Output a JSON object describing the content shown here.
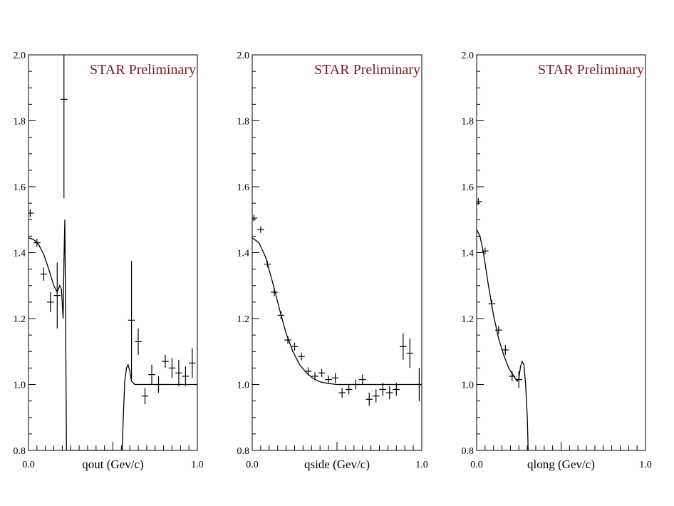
{
  "chart_data": [
    {
      "type": "scatter",
      "watermark": "STAR Preliminary",
      "xlabel": "qout (Gev/c)",
      "x_tick_labels": [
        "0.0",
        "1.0"
      ],
      "y_tick_labels": [
        "0.8",
        "1.0",
        "1.2",
        "1.4",
        "1.6",
        "1.8",
        "2.0"
      ],
      "xlim": [
        0.0,
        1.0
      ],
      "ylim": [
        0.8,
        2.0
      ],
      "series": [
        {
          "points": [
            {
              "x": 0.01,
              "y": 1.52,
              "xerr": 0.02,
              "yerr": 0.012
            },
            {
              "x": 0.05,
              "y": 1.43,
              "xerr": 0.02,
              "yerr": 0.012
            },
            {
              "x": 0.09,
              "y": 1.335,
              "xerr": 0.02,
              "yerr": 0.02
            },
            {
              "x": 0.13,
              "y": 1.25,
              "xerr": 0.02,
              "yerr": 0.03
            },
            {
              "x": 0.17,
              "y": 1.27,
              "xerr": 0.02,
              "yerr": 0.1
            },
            {
              "x": 0.21,
              "y": 1.865,
              "xerr": 0.02,
              "yerr": 0.3
            },
            {
              "x": 0.61,
              "y": 1.195,
              "xerr": 0.02,
              "yerr": 0.18
            },
            {
              "x": 0.65,
              "y": 1.13,
              "xerr": 0.02,
              "yerr": 0.04
            },
            {
              "x": 0.69,
              "y": 0.965,
              "xerr": 0.02,
              "yerr": 0.025
            },
            {
              "x": 0.73,
              "y": 1.03,
              "xerr": 0.02,
              "yerr": 0.03
            },
            {
              "x": 0.77,
              "y": 1.0,
              "xerr": 0.02,
              "yerr": 0.025
            },
            {
              "x": 0.81,
              "y": 1.07,
              "xerr": 0.02,
              "yerr": 0.02
            },
            {
              "x": 0.85,
              "y": 1.05,
              "xerr": 0.02,
              "yerr": 0.03
            },
            {
              "x": 0.89,
              "y": 1.035,
              "xerr": 0.02,
              "yerr": 0.04
            },
            {
              "x": 0.93,
              "y": 1.025,
              "xerr": 0.02,
              "yerr": 0.03
            },
            {
              "x": 0.97,
              "y": 1.065,
              "xerr": 0.02,
              "yerr": 0.045
            }
          ],
          "fit_curve": [
            [
              0.0,
              1.445
            ],
            [
              0.03,
              1.44
            ],
            [
              0.06,
              1.425
            ],
            [
              0.09,
              1.395
            ],
            [
              0.12,
              1.35
            ],
            [
              0.15,
              1.3
            ],
            [
              0.17,
              1.28
            ],
            [
              0.185,
              1.3
            ],
            [
              0.195,
              1.29
            ],
            [
              0.205,
              1.2
            ],
            [
              0.21,
              1.38
            ],
            [
              0.215,
              1.5
            ],
            [
              0.22,
              1.2
            ],
            [
              0.225,
              0.8
            ],
            [
              0.5,
              0.8
            ],
            [
              0.555,
              0.8
            ],
            [
              0.56,
              0.88
            ],
            [
              0.57,
              1.01
            ],
            [
              0.58,
              1.05
            ],
            [
              0.59,
              1.06
            ],
            [
              0.6,
              1.04
            ],
            [
              0.61,
              1.01
            ],
            [
              0.63,
              1.0
            ],
            [
              1.0,
              1.0
            ]
          ]
        }
      ]
    },
    {
      "type": "scatter",
      "watermark": "STAR Preliminary",
      "xlabel": "qside (Gev/c)",
      "x_tick_labels": [
        "0.0",
        "1.0"
      ],
      "y_tick_labels": [
        "0.8",
        "1.0",
        "1.2",
        "1.4",
        "1.6",
        "1.8",
        "2.0"
      ],
      "xlim": [
        0.0,
        1.0
      ],
      "ylim": [
        0.8,
        2.0
      ],
      "series": [
        {
          "points": [
            {
              "x": 0.01,
              "y": 1.505,
              "xerr": 0.02,
              "yerr": 0.01
            },
            {
              "x": 0.05,
              "y": 1.47,
              "xerr": 0.02,
              "yerr": 0.01
            },
            {
              "x": 0.09,
              "y": 1.365,
              "xerr": 0.02,
              "yerr": 0.01
            },
            {
              "x": 0.13,
              "y": 1.28,
              "xerr": 0.02,
              "yerr": 0.012
            },
            {
              "x": 0.17,
              "y": 1.21,
              "xerr": 0.02,
              "yerr": 0.012
            },
            {
              "x": 0.21,
              "y": 1.135,
              "xerr": 0.02,
              "yerr": 0.012
            },
            {
              "x": 0.25,
              "y": 1.115,
              "xerr": 0.02,
              "yerr": 0.012
            },
            {
              "x": 0.29,
              "y": 1.085,
              "xerr": 0.02,
              "yerr": 0.012
            },
            {
              "x": 0.33,
              "y": 1.04,
              "xerr": 0.02,
              "yerr": 0.012
            },
            {
              "x": 0.37,
              "y": 1.025,
              "xerr": 0.02,
              "yerr": 0.012
            },
            {
              "x": 0.41,
              "y": 1.035,
              "xerr": 0.02,
              "yerr": 0.012
            },
            {
              "x": 0.45,
              "y": 1.015,
              "xerr": 0.02,
              "yerr": 0.012
            },
            {
              "x": 0.49,
              "y": 1.02,
              "xerr": 0.02,
              "yerr": 0.015
            },
            {
              "x": 0.53,
              "y": 0.975,
              "xerr": 0.02,
              "yerr": 0.015
            },
            {
              "x": 0.57,
              "y": 0.985,
              "xerr": 0.02,
              "yerr": 0.015
            },
            {
              "x": 0.61,
              "y": 1.0,
              "xerr": 0.02,
              "yerr": 0.015
            },
            {
              "x": 0.65,
              "y": 1.015,
              "xerr": 0.02,
              "yerr": 0.015
            },
            {
              "x": 0.69,
              "y": 0.955,
              "xerr": 0.02,
              "yerr": 0.02
            },
            {
              "x": 0.73,
              "y": 0.965,
              "xerr": 0.02,
              "yerr": 0.02
            },
            {
              "x": 0.77,
              "y": 0.985,
              "xerr": 0.02,
              "yerr": 0.02
            },
            {
              "x": 0.81,
              "y": 0.975,
              "xerr": 0.02,
              "yerr": 0.02
            },
            {
              "x": 0.85,
              "y": 0.985,
              "xerr": 0.02,
              "yerr": 0.02
            },
            {
              "x": 0.89,
              "y": 1.115,
              "xerr": 0.02,
              "yerr": 0.04
            },
            {
              "x": 0.93,
              "y": 1.095,
              "xerr": 0.02,
              "yerr": 0.045
            },
            {
              "x": 0.985,
              "y": 1.0,
              "xerr": 0.02,
              "yerr": 0.05
            }
          ],
          "fit_curve": [
            [
              0.0,
              1.445
            ],
            [
              0.04,
              1.43
            ],
            [
              0.08,
              1.385
            ],
            [
              0.12,
              1.31
            ],
            [
              0.16,
              1.23
            ],
            [
              0.2,
              1.155
            ],
            [
              0.24,
              1.1
            ],
            [
              0.28,
              1.06
            ],
            [
              0.32,
              1.035
            ],
            [
              0.36,
              1.018
            ],
            [
              0.4,
              1.008
            ],
            [
              0.45,
              1.003
            ],
            [
              0.5,
              1.0
            ],
            [
              1.0,
              1.0
            ]
          ]
        }
      ]
    },
    {
      "type": "scatter",
      "watermark": "STAR Preliminary",
      "xlabel": "qlong (Gev/c)",
      "x_tick_labels": [
        "0.0",
        "1.0"
      ],
      "y_tick_labels": [
        "0.8",
        "1.0",
        "1.2",
        "1.4",
        "1.6",
        "1.8",
        "2.0"
      ],
      "xlim": [
        0.0,
        1.0
      ],
      "ylim": [
        0.8,
        2.0
      ],
      "series": [
        {
          "points": [
            {
              "x": 0.01,
              "y": 1.555,
              "xerr": 0.02,
              "yerr": 0.01
            },
            {
              "x": 0.05,
              "y": 1.405,
              "xerr": 0.02,
              "yerr": 0.01
            },
            {
              "x": 0.09,
              "y": 1.245,
              "xerr": 0.02,
              "yerr": 0.012
            },
            {
              "x": 0.13,
              "y": 1.165,
              "xerr": 0.02,
              "yerr": 0.012
            },
            {
              "x": 0.17,
              "y": 1.105,
              "xerr": 0.02,
              "yerr": 0.015
            },
            {
              "x": 0.21,
              "y": 1.025,
              "xerr": 0.02,
              "yerr": 0.015
            },
            {
              "x": 0.25,
              "y": 1.015,
              "xerr": 0.02,
              "yerr": 0.025
            }
          ],
          "fit_curve": [
            [
              0.0,
              1.47
            ],
            [
              0.02,
              1.45
            ],
            [
              0.04,
              1.4
            ],
            [
              0.07,
              1.3
            ],
            [
              0.1,
              1.21
            ],
            [
              0.13,
              1.14
            ],
            [
              0.16,
              1.09
            ],
            [
              0.19,
              1.05
            ],
            [
              0.22,
              1.025
            ],
            [
              0.24,
              1.01
            ],
            [
              0.25,
              1.02
            ],
            [
              0.26,
              1.055
            ],
            [
              0.27,
              1.07
            ],
            [
              0.28,
              1.06
            ],
            [
              0.29,
              1.0
            ],
            [
              0.3,
              0.9
            ],
            [
              0.305,
              0.8
            ]
          ]
        }
      ]
    }
  ]
}
